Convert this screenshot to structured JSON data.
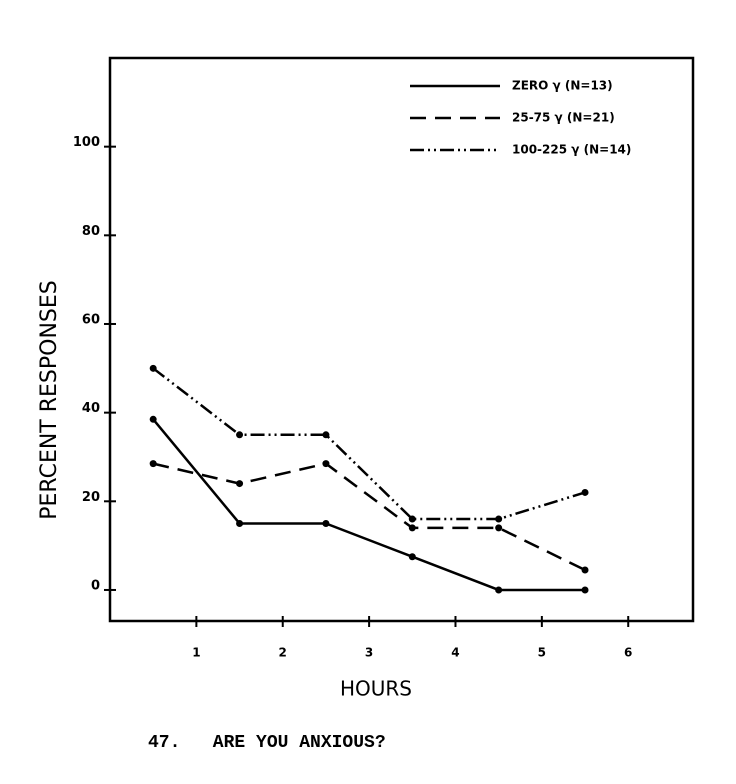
{
  "chart_data": {
    "type": "line",
    "title": "47.   ARE YOU ANXIOUS?",
    "x_label": "HOURS",
    "y_label": "PERCENT RESPONSES",
    "x": [
      0.5,
      1.5,
      2.5,
      3.5,
      4.5,
      5.5
    ],
    "series": [
      {
        "name": "ZERO γ (N=13)",
        "color": "#000000",
        "dash": "solid",
        "values": [
          38.5,
          15,
          15,
          7.5,
          0,
          0
        ]
      },
      {
        "name": "25-75 γ (N=21)",
        "color": "#000000",
        "dash": "dashed",
        "values": [
          28.5,
          24,
          28.5,
          14,
          14,
          4.5
        ]
      },
      {
        "name": "100-225 γ (N=14)",
        "color": "#000000",
        "dash": "dash-dot-dot",
        "values": [
          50,
          35,
          35,
          16,
          16,
          22
        ]
      }
    ],
    "xlim": [
      0,
      6.75
    ],
    "xticks": [
      1,
      2,
      3,
      4,
      5,
      6
    ],
    "ylim": [
      -7,
      120
    ],
    "yticks": [
      0,
      20,
      40,
      60,
      80,
      100
    ],
    "legend": "top-right"
  }
}
